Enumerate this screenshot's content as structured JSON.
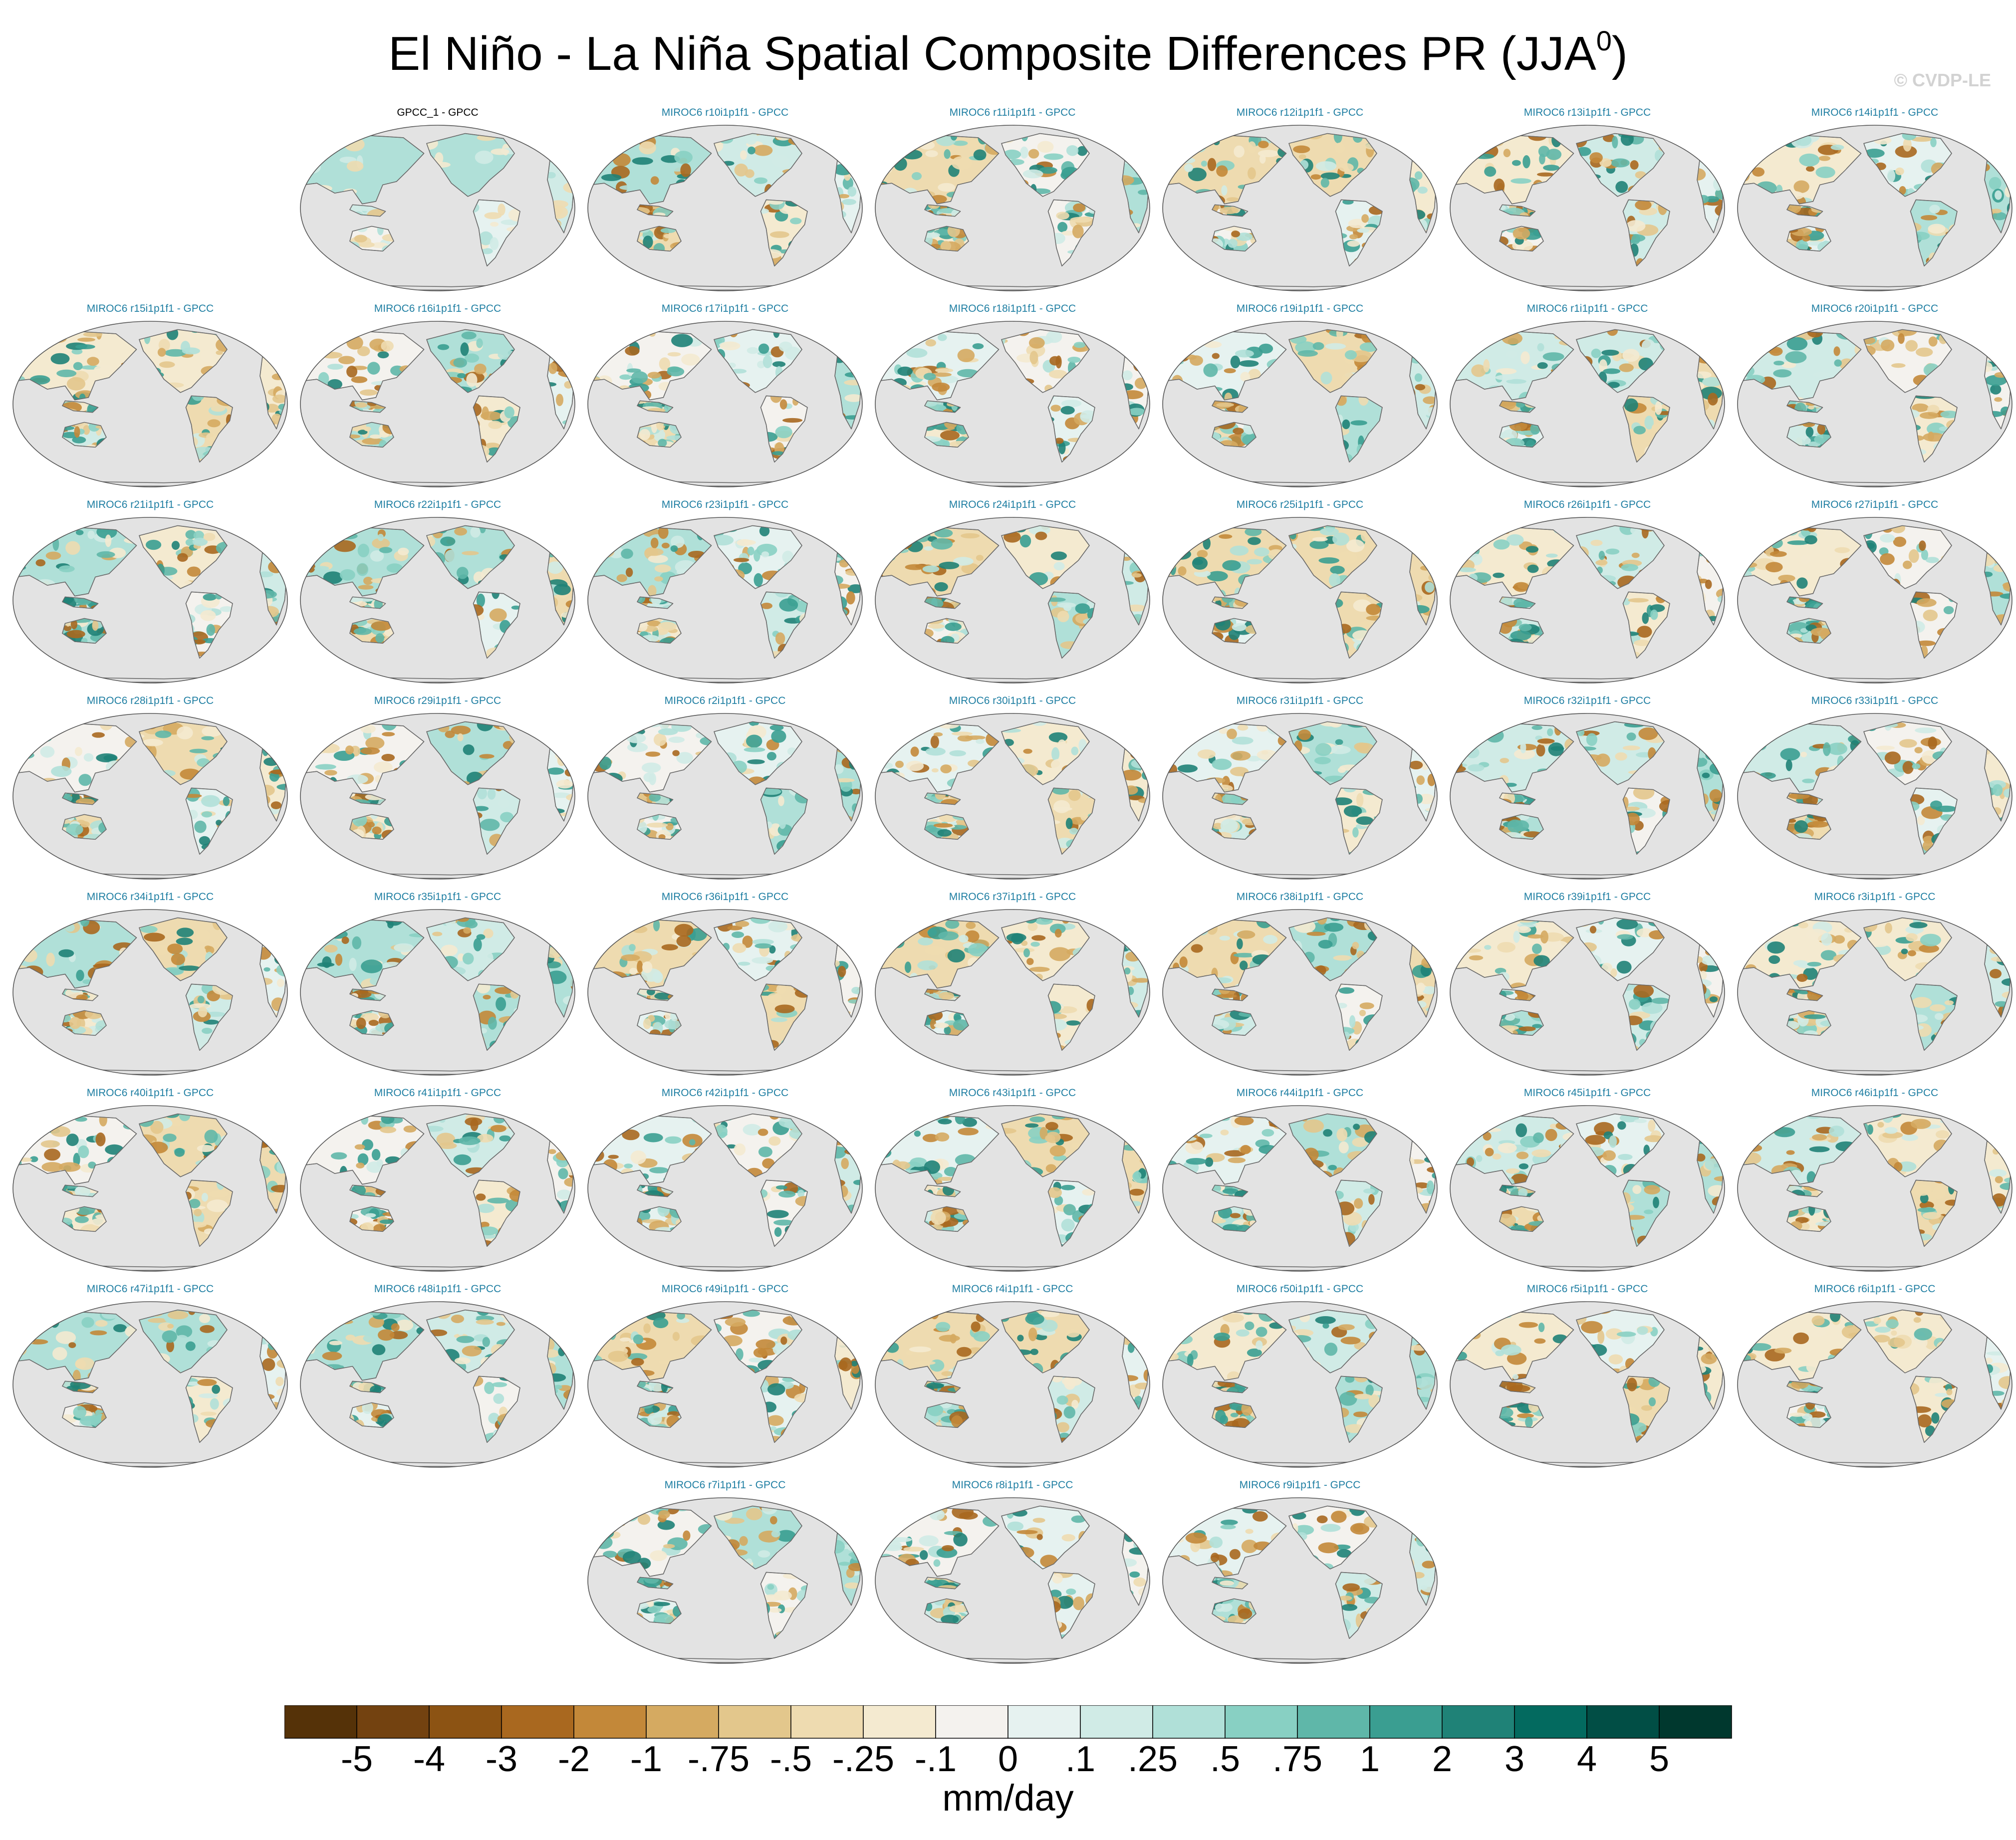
{
  "title": {
    "main": "El Niño - La Niña Spatial Composite Differences PR (JJA",
    "superscript": "0",
    "close": ")"
  },
  "watermark": "© CVDP-LE",
  "colors": {
    "ocean": "#e3e3e3",
    "outline": "#555555",
    "coastline": "#6a6a6a",
    "label_model": "#1e7ea2",
    "label_obs": "#000000"
  },
  "panels": [
    {
      "row": 0,
      "col": 1,
      "label": "GPCC_1 - GPCC",
      "type": "obs"
    },
    {
      "row": 0,
      "col": 2,
      "label": "MIROC6 r10i1p1f1 - GPCC",
      "type": "model"
    },
    {
      "row": 0,
      "col": 3,
      "label": "MIROC6 r11i1p1f1 - GPCC",
      "type": "model"
    },
    {
      "row": 0,
      "col": 4,
      "label": "MIROC6 r12i1p1f1 - GPCC",
      "type": "model"
    },
    {
      "row": 0,
      "col": 5,
      "label": "MIROC6 r13i1p1f1 - GPCC",
      "type": "model"
    },
    {
      "row": 0,
      "col": 6,
      "label": "MIROC6 r14i1p1f1 - GPCC",
      "type": "model"
    },
    {
      "row": 1,
      "col": 0,
      "label": "MIROC6 r15i1p1f1 - GPCC",
      "type": "model"
    },
    {
      "row": 1,
      "col": 1,
      "label": "MIROC6 r16i1p1f1 - GPCC",
      "type": "model"
    },
    {
      "row": 1,
      "col": 2,
      "label": "MIROC6 r17i1p1f1 - GPCC",
      "type": "model"
    },
    {
      "row": 1,
      "col": 3,
      "label": "MIROC6 r18i1p1f1 - GPCC",
      "type": "model"
    },
    {
      "row": 1,
      "col": 4,
      "label": "MIROC6 r19i1p1f1 - GPCC",
      "type": "model"
    },
    {
      "row": 1,
      "col": 5,
      "label": "MIROC6 r1i1p1f1 - GPCC",
      "type": "model"
    },
    {
      "row": 1,
      "col": 6,
      "label": "MIROC6 r20i1p1f1 - GPCC",
      "type": "model"
    },
    {
      "row": 2,
      "col": 0,
      "label": "MIROC6 r21i1p1f1 - GPCC",
      "type": "model"
    },
    {
      "row": 2,
      "col": 1,
      "label": "MIROC6 r22i1p1f1 - GPCC",
      "type": "model"
    },
    {
      "row": 2,
      "col": 2,
      "label": "MIROC6 r23i1p1f1 - GPCC",
      "type": "model"
    },
    {
      "row": 2,
      "col": 3,
      "label": "MIROC6 r24i1p1f1 - GPCC",
      "type": "model"
    },
    {
      "row": 2,
      "col": 4,
      "label": "MIROC6 r25i1p1f1 - GPCC",
      "type": "model"
    },
    {
      "row": 2,
      "col": 5,
      "label": "MIROC6 r26i1p1f1 - GPCC",
      "type": "model"
    },
    {
      "row": 2,
      "col": 6,
      "label": "MIROC6 r27i1p1f1 - GPCC",
      "type": "model"
    },
    {
      "row": 3,
      "col": 0,
      "label": "MIROC6 r28i1p1f1 - GPCC",
      "type": "model"
    },
    {
      "row": 3,
      "col": 1,
      "label": "MIROC6 r29i1p1f1 - GPCC",
      "type": "model"
    },
    {
      "row": 3,
      "col": 2,
      "label": "MIROC6 r2i1p1f1 - GPCC",
      "type": "model"
    },
    {
      "row": 3,
      "col": 3,
      "label": "MIROC6 r30i1p1f1 - GPCC",
      "type": "model"
    },
    {
      "row": 3,
      "col": 4,
      "label": "MIROC6 r31i1p1f1 - GPCC",
      "type": "model"
    },
    {
      "row": 3,
      "col": 5,
      "label": "MIROC6 r32i1p1f1 - GPCC",
      "type": "model"
    },
    {
      "row": 3,
      "col": 6,
      "label": "MIROC6 r33i1p1f1 - GPCC",
      "type": "model"
    },
    {
      "row": 4,
      "col": 0,
      "label": "MIROC6 r34i1p1f1 - GPCC",
      "type": "model"
    },
    {
      "row": 4,
      "col": 1,
      "label": "MIROC6 r35i1p1f1 - GPCC",
      "type": "model"
    },
    {
      "row": 4,
      "col": 2,
      "label": "MIROC6 r36i1p1f1 - GPCC",
      "type": "model"
    },
    {
      "row": 4,
      "col": 3,
      "label": "MIROC6 r37i1p1f1 - GPCC",
      "type": "model"
    },
    {
      "row": 4,
      "col": 4,
      "label": "MIROC6 r38i1p1f1 - GPCC",
      "type": "model"
    },
    {
      "row": 4,
      "col": 5,
      "label": "MIROC6 r39i1p1f1 - GPCC",
      "type": "model"
    },
    {
      "row": 4,
      "col": 6,
      "label": "MIROC6 r3i1p1f1 - GPCC",
      "type": "model"
    },
    {
      "row": 5,
      "col": 0,
      "label": "MIROC6 r40i1p1f1 - GPCC",
      "type": "model"
    },
    {
      "row": 5,
      "col": 1,
      "label": "MIROC6 r41i1p1f1 - GPCC",
      "type": "model"
    },
    {
      "row": 5,
      "col": 2,
      "label": "MIROC6 r42i1p1f1 - GPCC",
      "type": "model"
    },
    {
      "row": 5,
      "col": 3,
      "label": "MIROC6 r43i1p1f1 - GPCC",
      "type": "model"
    },
    {
      "row": 5,
      "col": 4,
      "label": "MIROC6 r44i1p1f1 - GPCC",
      "type": "model"
    },
    {
      "row": 5,
      "col": 5,
      "label": "MIROC6 r45i1p1f1 - GPCC",
      "type": "model"
    },
    {
      "row": 5,
      "col": 6,
      "label": "MIROC6 r46i1p1f1 - GPCC",
      "type": "model"
    },
    {
      "row": 6,
      "col": 0,
      "label": "MIROC6 r47i1p1f1 - GPCC",
      "type": "model"
    },
    {
      "row": 6,
      "col": 1,
      "label": "MIROC6 r48i1p1f1 - GPCC",
      "type": "model"
    },
    {
      "row": 6,
      "col": 2,
      "label": "MIROC6 r49i1p1f1 - GPCC",
      "type": "model"
    },
    {
      "row": 6,
      "col": 3,
      "label": "MIROC6 r4i1p1f1 - GPCC",
      "type": "model"
    },
    {
      "row": 6,
      "col": 4,
      "label": "MIROC6 r50i1p1f1 - GPCC",
      "type": "model"
    },
    {
      "row": 6,
      "col": 5,
      "label": "MIROC6 r5i1p1f1 - GPCC",
      "type": "model"
    },
    {
      "row": 6,
      "col": 6,
      "label": "MIROC6 r6i1p1f1 - GPCC",
      "type": "model"
    },
    {
      "row": 7,
      "col": 2,
      "label": "MIROC6 r7i1p1f1 - GPCC",
      "type": "model"
    },
    {
      "row": 7,
      "col": 3,
      "label": "MIROC6 r8i1p1f1 - GPCC",
      "type": "model"
    },
    {
      "row": 7,
      "col": 4,
      "label": "MIROC6 r9i1p1f1 - GPCC",
      "type": "model"
    }
  ],
  "colorbar": {
    "colors": [
      "#553208",
      "#734210",
      "#8c5313",
      "#a9681f",
      "#c38839",
      "#d5aa61",
      "#e3c78c",
      "#eedbb0",
      "#f4ead0",
      "#f4f2ee",
      "#e6f2f0",
      "#d0ebe6",
      "#b0e0d8",
      "#88d0c3",
      "#5fb7a9",
      "#3a9e91",
      "#1f8277",
      "#036a5f",
      "#014e45",
      "#00382e"
    ],
    "tick_labels": [
      "-5",
      "-4",
      "-3",
      "-2",
      "-1",
      "-.75",
      "-.5",
      "-.25",
      "-.1",
      "0",
      ".1",
      ".25",
      ".5",
      ".75",
      "1",
      "2",
      "3",
      "4",
      "5"
    ],
    "units": "mm/day"
  }
}
